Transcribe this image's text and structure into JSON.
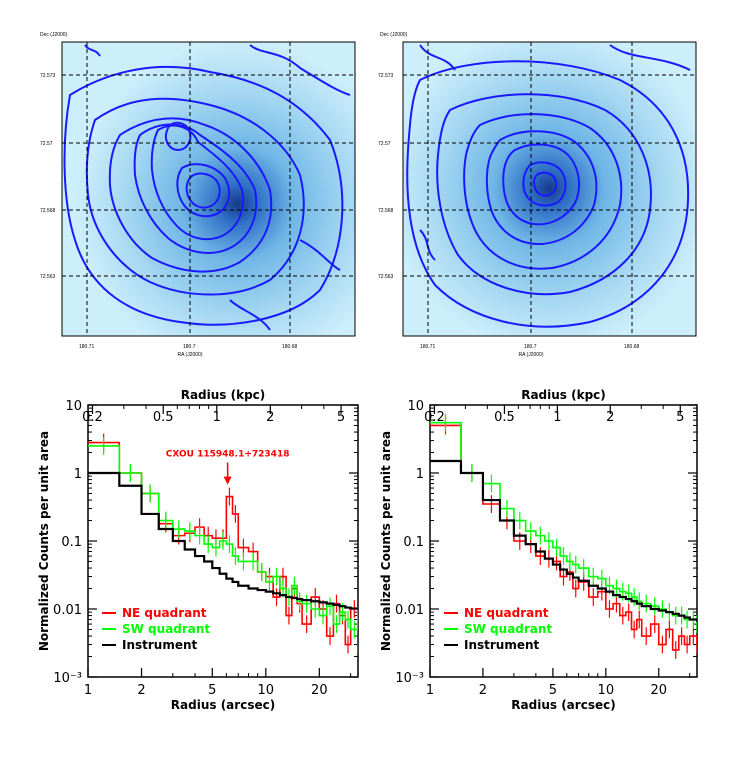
{
  "colors": {
    "contour": "#1a1aff",
    "map_bg": "#bfe6f7",
    "map_mid": "#6fb6e6",
    "map_core": "#163a8a",
    "ne": "#ff0000",
    "sw": "#00ff00",
    "inst": "#000000"
  },
  "maps": [
    {
      "name": "left",
      "dec_label": "Dec (J2000)",
      "ra_label": "RA (J2000)",
      "dec_ticks": [
        "72.573",
        "72.57",
        "72.568",
        "72.563"
      ],
      "ra_ticks": [
        "180.71",
        "180.7",
        "180.68"
      ]
    },
    {
      "name": "right",
      "dec_label": "Dec (J2000)",
      "ra_label": "RA (J2000)",
      "dec_ticks": [
        "72.573",
        "72.57",
        "72.568",
        "72.563"
      ],
      "ra_ticks": [
        "180.71",
        "180.7",
        "180.68"
      ]
    }
  ],
  "chart_data": [
    {
      "type": "line",
      "title": "",
      "top_xlabel": "Radius (kpc)",
      "xlabel": "Radius (arcsec)",
      "ylabel": "Normalized Counts per unit area",
      "xscale": "log",
      "yscale": "log",
      "xlim": [
        1,
        33
      ],
      "ylim": [
        0.001,
        10
      ],
      "x_ticks": [
        "1",
        "2",
        "5",
        "10",
        "20"
      ],
      "y_ticks": [
        "10",
        "1",
        "0.1",
        "0.01",
        "10⁻³"
      ],
      "top_ticks": [
        "0.2",
        "0.5",
        "1",
        "2",
        "5"
      ],
      "annotation": {
        "text": "CXOU 115948.1+723418",
        "x": 6.1,
        "y": 0.55
      },
      "legend": [
        "NE quadrant",
        "SW quadrant",
        "Instrument"
      ],
      "legend_position": "bottom-left",
      "series": [
        {
          "name": "NE quadrant",
          "color": "#ff0000",
          "x": [
            1,
            1.5,
            2,
            2.5,
            3,
            3.5,
            4,
            4.5,
            5,
            5.5,
            6,
            6.5,
            7,
            8,
            9,
            10,
            11,
            12,
            13,
            14,
            15,
            16,
            18,
            20,
            22,
            24,
            26,
            28,
            30,
            33
          ],
          "y": [
            2.8,
            1.0,
            0.5,
            0.18,
            0.12,
            0.13,
            0.16,
            0.12,
            0.11,
            0.11,
            0.45,
            0.25,
            0.08,
            0.07,
            0.035,
            0.03,
            0.015,
            0.03,
            0.008,
            0.02,
            0.012,
            0.006,
            0.015,
            0.01,
            0.004,
            0.012,
            0.008,
            0.003,
            0.01,
            0.003
          ]
        },
        {
          "name": "SW quadrant",
          "color": "#00ff00",
          "x": [
            1,
            1.5,
            2,
            2.5,
            3,
            3.5,
            4,
            4.5,
            5,
            5.5,
            6,
            6.5,
            7,
            8,
            9,
            10,
            11,
            12,
            13,
            14,
            15,
            16,
            18,
            20,
            22,
            24,
            26,
            28,
            30,
            33
          ],
          "y": [
            2.5,
            1.0,
            0.5,
            0.2,
            0.15,
            0.14,
            0.12,
            0.09,
            0.08,
            0.1,
            0.09,
            0.06,
            0.05,
            0.05,
            0.035,
            0.025,
            0.03,
            0.02,
            0.015,
            0.022,
            0.013,
            0.012,
            0.01,
            0.008,
            0.011,
            0.006,
            0.009,
            0.007,
            0.005,
            0.008
          ]
        },
        {
          "name": "Instrument",
          "color": "#000000",
          "x": [
            1,
            1.5,
            2,
            2.5,
            3,
            3.5,
            4,
            4.5,
            5,
            5.5,
            6,
            6.5,
            7,
            8,
            9,
            10,
            11,
            12,
            13,
            14,
            15,
            16,
            18,
            20,
            22,
            24,
            26,
            28,
            30,
            33
          ],
          "y": [
            1.0,
            0.65,
            0.25,
            0.15,
            0.1,
            0.075,
            0.06,
            0.05,
            0.04,
            0.033,
            0.028,
            0.025,
            0.022,
            0.02,
            0.019,
            0.018,
            0.017,
            0.016,
            0.015,
            0.0145,
            0.014,
            0.0135,
            0.013,
            0.0125,
            0.012,
            0.0115,
            0.011,
            0.0105,
            0.0102,
            0.01
          ]
        }
      ]
    },
    {
      "type": "line",
      "title": "",
      "top_xlabel": "Radius (kpc)",
      "xlabel": "Radius (arcsec)",
      "ylabel": "Normalized Counts per unit area",
      "xscale": "log",
      "yscale": "log",
      "xlim": [
        1,
        33
      ],
      "ylim": [
        0.001,
        10
      ],
      "x_ticks": [
        "1",
        "2",
        "5",
        "10",
        "20"
      ],
      "y_ticks": [
        "10",
        "1",
        "0.1",
        "0.01",
        "10⁻³"
      ],
      "top_ticks": [
        "0.2",
        "0.5",
        "1",
        "2",
        "5"
      ],
      "legend": [
        "NE quadrant",
        "SW quadrant",
        "Instrument"
      ],
      "legend_position": "bottom-left",
      "series": [
        {
          "name": "NE quadrant",
          "color": "#ff0000",
          "x": [
            1,
            1.5,
            2,
            2.5,
            3,
            3.5,
            4,
            4.5,
            5,
            5.5,
            6,
            6.5,
            7,
            8,
            9,
            10,
            11,
            12,
            13,
            14,
            15,
            16,
            18,
            20,
            22,
            24,
            26,
            28,
            30,
            33
          ],
          "y": [
            5.0,
            1.0,
            0.35,
            0.2,
            0.1,
            0.09,
            0.06,
            0.055,
            0.05,
            0.03,
            0.035,
            0.02,
            0.025,
            0.015,
            0.018,
            0.01,
            0.012,
            0.008,
            0.009,
            0.005,
            0.007,
            0.004,
            0.006,
            0.003,
            0.005,
            0.0025,
            0.004,
            0.003,
            0.004,
            0.003
          ]
        },
        {
          "name": "SW quadrant",
          "color": "#00ff00",
          "x": [
            1,
            1.5,
            2,
            2.5,
            3,
            3.5,
            4,
            4.5,
            5,
            5.5,
            6,
            6.5,
            7,
            8,
            9,
            10,
            11,
            12,
            13,
            14,
            15,
            16,
            18,
            20,
            22,
            24,
            26,
            28,
            30,
            33
          ],
          "y": [
            5.5,
            1.0,
            0.7,
            0.3,
            0.2,
            0.14,
            0.12,
            0.1,
            0.08,
            0.06,
            0.05,
            0.045,
            0.04,
            0.03,
            0.028,
            0.022,
            0.02,
            0.018,
            0.017,
            0.015,
            0.013,
            0.012,
            0.011,
            0.01,
            0.009,
            0.008,
            0.008,
            0.007,
            0.007,
            0.006
          ]
        },
        {
          "name": "Instrument",
          "color": "#000000",
          "x": [
            1,
            1.5,
            2,
            2.5,
            3,
            3.5,
            4,
            4.5,
            5,
            5.5,
            6,
            6.5,
            7,
            8,
            9,
            10,
            11,
            12,
            13,
            14,
            15,
            16,
            18,
            20,
            22,
            24,
            26,
            28,
            30,
            33
          ],
          "y": [
            1.5,
            1.0,
            0.4,
            0.2,
            0.12,
            0.09,
            0.07,
            0.055,
            0.045,
            0.038,
            0.033,
            0.029,
            0.026,
            0.022,
            0.02,
            0.018,
            0.016,
            0.015,
            0.014,
            0.013,
            0.012,
            0.011,
            0.01,
            0.0095,
            0.009,
            0.0085,
            0.008,
            0.0075,
            0.007,
            0.0065
          ]
        }
      ]
    }
  ]
}
